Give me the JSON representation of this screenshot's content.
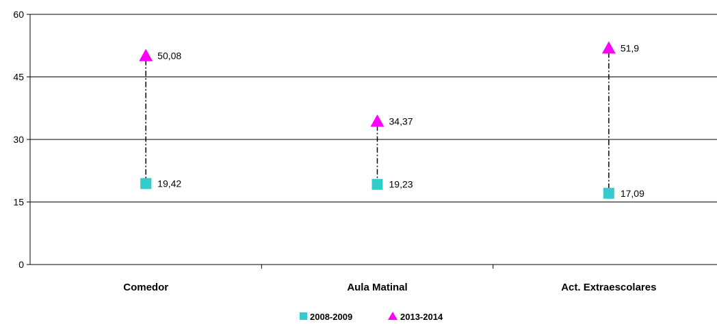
{
  "chart_data": {
    "type": "scatter",
    "categories": [
      "Comedor",
      "Aula Matinal",
      "Act. Extraescolares"
    ],
    "series": [
      {
        "name": "2008-2009",
        "marker": "square",
        "color": "#33CCCC",
        "values": [
          19.42,
          19.23,
          17.09
        ],
        "labels": [
          "19,42",
          "19,23",
          "17,09"
        ]
      },
      {
        "name": "2013-2014",
        "marker": "triangle",
        "color": "#FF00FF",
        "values": [
          50.08,
          34.37,
          51.9
        ],
        "labels": [
          "50,08",
          "34,37",
          "51,9"
        ]
      }
    ],
    "ylim": [
      0,
      60
    ],
    "yticks": [
      0,
      15,
      30,
      45,
      60
    ],
    "ytick_labels": [
      "0",
      "15",
      "30",
      "45",
      "60"
    ],
    "grid": true,
    "drop_lines": true,
    "legend": "bottom",
    "title": "",
    "xlabel": "",
    "ylabel": ""
  }
}
